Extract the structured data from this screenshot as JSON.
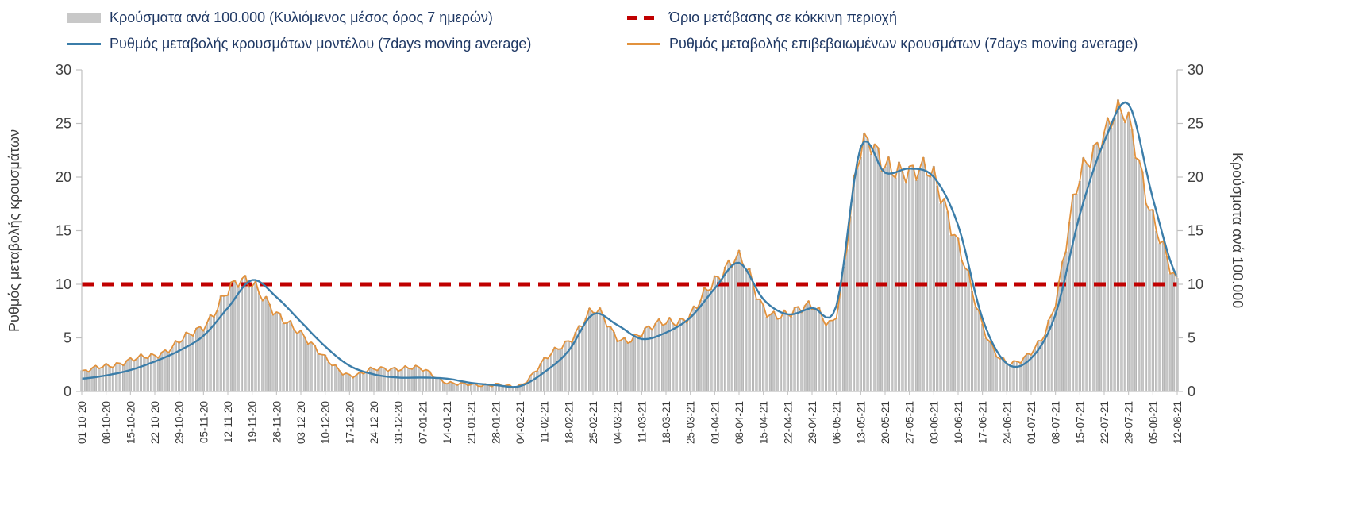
{
  "legend": {
    "cases_bars": "Κρούσματα ανά 100.000 (Κυλιόμενος μέσος όρος 7 ημερών)",
    "threshold": "Όριο μετάβασης σε κόκκινη περιοχή",
    "model_rate": "Ρυθμός μεταβολής κρουσμάτων μοντέλου (7days moving average)",
    "confirmed_rate": "Ρυθμός μεταβολής επιβεβαιωμένων κρουσμάτων (7days moving average)"
  },
  "axes": {
    "left_title": "Ρυθμός μεταβολής κρουσμάτων",
    "right_title": "Κρούσματα ανά 100.000",
    "y_ticks": [
      0,
      5,
      10,
      15,
      20,
      25,
      30
    ],
    "y_max": 30
  },
  "chart_data": {
    "type": "combo bar + line",
    "ylim": [
      0,
      30
    ],
    "grid": "off",
    "legend_position": "top",
    "x_weekly_labels": [
      "01-10-20",
      "08-10-20",
      "15-10-20",
      "22-10-20",
      "29-10-20",
      "05-11-20",
      "12-11-20",
      "19-11-20",
      "26-11-20",
      "03-12-20",
      "10-12-20",
      "17-12-20",
      "24-12-20",
      "31-12-20",
      "07-01-21",
      "14-01-21",
      "21-01-21",
      "28-01-21",
      "04-02-21",
      "11-02-21",
      "18-02-21",
      "25-02-21",
      "04-03-21",
      "11-03-21",
      "18-03-21",
      "25-03-21",
      "01-04-21",
      "08-04-21",
      "15-04-21",
      "22-04-21",
      "29-04-21",
      "06-05-21",
      "13-05-21",
      "20-05-21",
      "27-05-21",
      "03-06-21",
      "10-06-21",
      "17-06-21",
      "24-06-21",
      "01-07-21",
      "08-07-21",
      "15-07-21",
      "22-07-21",
      "29-07-21",
      "05-08-21",
      "12-08-21"
    ],
    "series": [
      {
        "id": "cases_bars",
        "name": "Κρούσματα ανά 100.000 (Κυλιόμενος μέσος όρος 7 ημερών)",
        "type": "bar",
        "color": "#c8c8c8",
        "values": [
          1.8,
          2.4,
          2.9,
          3.4,
          4.6,
          6.2,
          9.2,
          10.3,
          7.0,
          5.6,
          3.0,
          1.6,
          2.0,
          2.2,
          2.0,
          0.9,
          0.6,
          0.7,
          0.5,
          3.0,
          4.6,
          7.6,
          5.0,
          5.4,
          6.6,
          7.0,
          10.5,
          12.2,
          8.0,
          7.0,
          8.3,
          7.0,
          23.2,
          20.5,
          21.0,
          19.5,
          14.0,
          6.0,
          2.8,
          3.6,
          8.5,
          20.0,
          24.0,
          25.3,
          16.0,
          10.3
        ]
      },
      {
        "id": "model_rate",
        "name": "Ρυθμός μεταβολής κρουσμάτων μοντέλου (7days moving average)",
        "type": "line",
        "color": "#3b7da9",
        "values": [
          1.2,
          1.5,
          2.0,
          2.8,
          3.8,
          5.2,
          7.8,
          10.4,
          8.8,
          6.5,
          4.2,
          2.4,
          1.6,
          1.3,
          1.3,
          1.2,
          0.8,
          0.6,
          0.5,
          1.8,
          3.8,
          7.2,
          6.2,
          4.9,
          5.5,
          6.9,
          9.6,
          12.0,
          8.6,
          7.2,
          7.8,
          8.0,
          22.8,
          20.4,
          20.8,
          20.0,
          15.5,
          6.8,
          2.6,
          3.1,
          7.2,
          16.5,
          23.3,
          26.8,
          18.0,
          10.7
        ]
      },
      {
        "id": "confirmed_rate",
        "name": "Ρυθμός μεταβολής επιβεβαιωμένων κρουσμάτων (7days moving average)",
        "type": "line",
        "color": "#e2923d",
        "values": [
          1.8,
          2.4,
          2.9,
          3.4,
          4.6,
          6.2,
          9.2,
          10.3,
          7.0,
          5.6,
          3.0,
          1.6,
          2.0,
          2.2,
          2.0,
          0.9,
          0.6,
          0.7,
          0.5,
          3.0,
          4.6,
          7.6,
          5.0,
          5.4,
          6.6,
          7.0,
          10.5,
          12.2,
          8.0,
          7.0,
          8.3,
          7.0,
          23.2,
          20.5,
          21.0,
          19.5,
          14.0,
          6.0,
          2.8,
          3.6,
          8.5,
          20.0,
          24.0,
          25.3,
          16.0,
          10.3
        ]
      },
      {
        "id": "threshold",
        "name": "Όριο μετάβασης σε κόκκινη περιοχή",
        "type": "threshold-line",
        "color": "#c00000",
        "value": 10
      }
    ]
  },
  "colors": {
    "legend_text": "#1f3864",
    "axis_text": "#404040",
    "axis_line": "#c0c0c0",
    "bar_fill": "#c8c8c8",
    "model_line": "#3b7da9",
    "confirmed_line": "#e2923d",
    "threshold_line": "#c00000"
  }
}
